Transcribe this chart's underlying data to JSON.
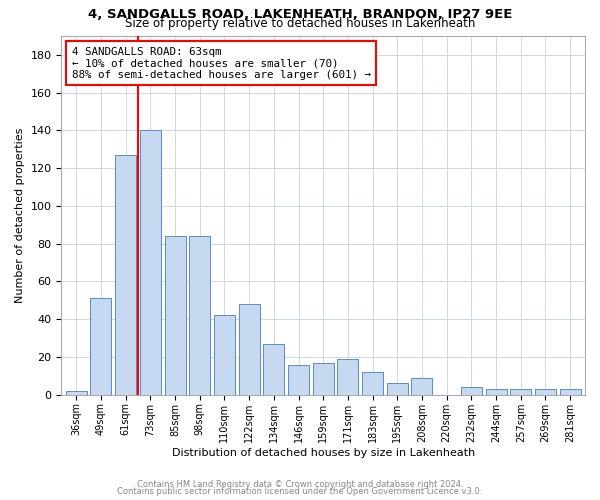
{
  "title": "4, SANDGALLS ROAD, LAKENHEATH, BRANDON, IP27 9EE",
  "subtitle": "Size of property relative to detached houses in Lakenheath",
  "xlabel": "Distribution of detached houses by size in Lakenheath",
  "ylabel": "Number of detached properties",
  "annotation_line1": "4 SANDGALLS ROAD: 63sqm",
  "annotation_line2": "← 10% of detached houses are smaller (70)",
  "annotation_line3": "88% of semi-detached houses are larger (601) →",
  "categories": [
    "36sqm",
    "49sqm",
    "61sqm",
    "73sqm",
    "85sqm",
    "98sqm",
    "110sqm",
    "122sqm",
    "134sqm",
    "146sqm",
    "159sqm",
    "171sqm",
    "183sqm",
    "195sqm",
    "208sqm",
    "220sqm",
    "232sqm",
    "244sqm",
    "257sqm",
    "269sqm",
    "281sqm"
  ],
  "values": [
    2,
    51,
    127,
    140,
    84,
    84,
    42,
    48,
    27,
    16,
    17,
    19,
    12,
    6,
    9,
    0,
    4,
    3,
    3,
    3,
    3
  ],
  "bar_color": "#c6d9f0",
  "bar_edge_color": "#5a8ac6",
  "red_line_x": 2.5,
  "footer_line1": "Contains HM Land Registry data © Crown copyright and database right 2024.",
  "footer_line2": "Contains public sector information licensed under the Open Government Licence v3.0.",
  "ylim": [
    0,
    190
  ],
  "yticks": [
    0,
    20,
    40,
    60,
    80,
    100,
    120,
    140,
    160,
    180
  ],
  "background_color": "#ffffff",
  "grid_color": "#d0d8e4"
}
